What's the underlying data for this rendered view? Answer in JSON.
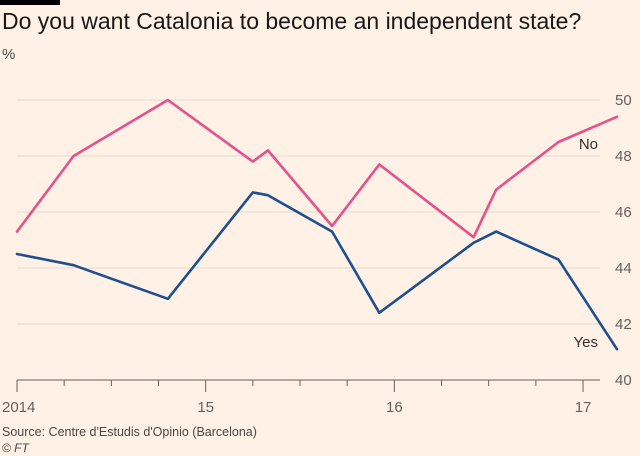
{
  "header": {
    "title": "Do you want Catalonia to become an independent state?",
    "unit": "%"
  },
  "footer": {
    "source": "Source: Centre d'Estudis d'Opinio (Barcelona)",
    "credit": "© FT"
  },
  "colors": {
    "background": "#fff1e5",
    "grid": "#e6d9ce",
    "no": "#e5518a",
    "yes": "#1f4f8f",
    "axis": "#66605c"
  },
  "chart_data": {
    "type": "line",
    "ylim": [
      40,
      50
    ],
    "y_ticks": [
      40,
      42,
      44,
      46,
      48,
      50
    ],
    "y_tick_labels": [
      "40",
      "42",
      "44",
      "46",
      "48",
      "50"
    ],
    "xlim": [
      2014.0,
      2017.18
    ],
    "x_ticks": [
      2014,
      2015,
      2016,
      2017
    ],
    "x_tick_labels": [
      "2014",
      "15",
      "16",
      "17"
    ],
    "x_minor_ticks": [
      2014.25,
      2014.5,
      2014.75,
      2015.25,
      2015.5,
      2015.75,
      2016.25,
      2016.5,
      2016.75,
      2017.25
    ],
    "grid": true,
    "series": [
      {
        "name": "No",
        "color": "#e5518a",
        "x": [
          2014.0,
          2014.3,
          2014.8,
          2015.25,
          2015.33,
          2015.67,
          2015.92,
          2016.42,
          2016.54,
          2016.87,
          2017.18
        ],
        "y": [
          45.3,
          48.0,
          50.0,
          47.8,
          48.2,
          45.5,
          47.7,
          45.1,
          46.8,
          48.5,
          49.4
        ]
      },
      {
        "name": "Yes",
        "color": "#1f4f8f",
        "x": [
          2014.0,
          2014.3,
          2014.8,
          2015.25,
          2015.33,
          2015.67,
          2015.92,
          2016.42,
          2016.54,
          2016.87,
          2017.18
        ],
        "y": [
          44.5,
          44.1,
          42.9,
          46.7,
          46.6,
          45.3,
          42.4,
          44.9,
          45.3,
          44.3,
          41.1
        ]
      }
    ]
  }
}
